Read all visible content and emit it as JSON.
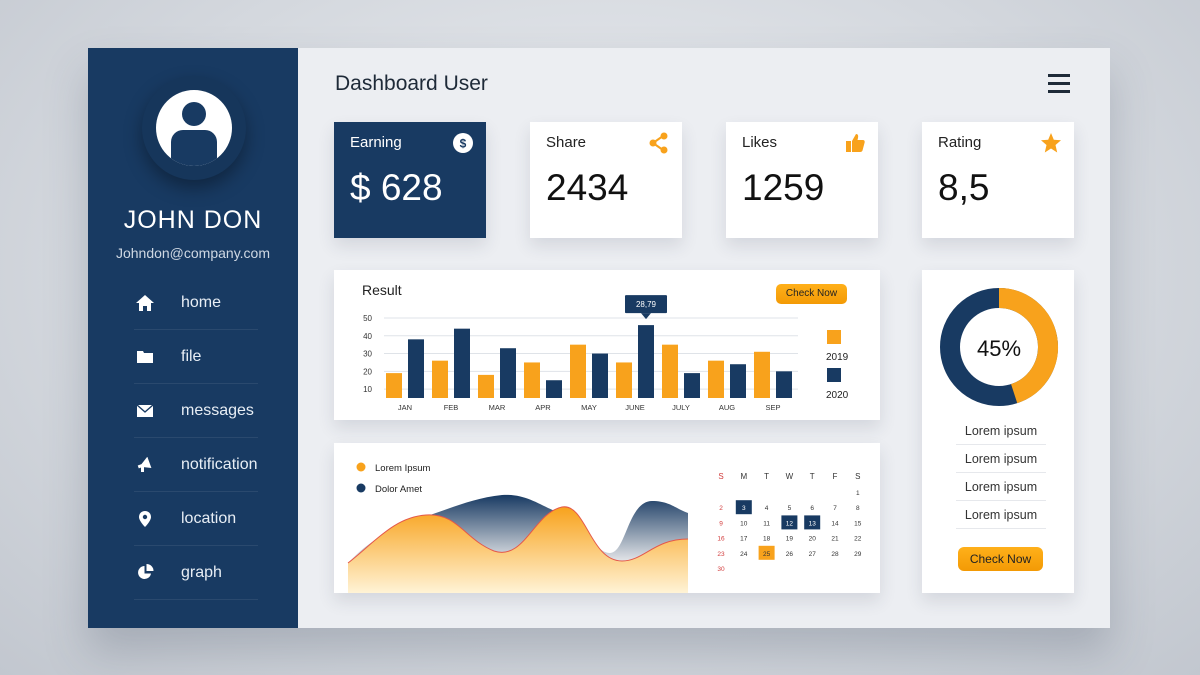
{
  "user": {
    "name": "JOHN DON",
    "email": "Johndon@company.com"
  },
  "sidebar": {
    "items": [
      {
        "label": "home",
        "icon": "home-icon"
      },
      {
        "label": "file",
        "icon": "folder-icon"
      },
      {
        "label": "messages",
        "icon": "envelope-icon"
      },
      {
        "label": "notification",
        "icon": "megaphone-icon"
      },
      {
        "label": "location",
        "icon": "location-pin-icon"
      },
      {
        "label": "graph",
        "icon": "pie-chart-icon"
      }
    ]
  },
  "header": {
    "title": "Dashboard User"
  },
  "stats": [
    {
      "label": "Earning",
      "value": "$ 628",
      "icon": "dollar-icon"
    },
    {
      "label": "Share",
      "value": "2434",
      "icon": "share-icon"
    },
    {
      "label": "Likes",
      "value": "1259",
      "icon": "thumbs-up-icon"
    },
    {
      "label": "Rating",
      "value": "8,5",
      "icon": "star-icon"
    }
  ],
  "result": {
    "title": "Result",
    "check_label": "Check Now",
    "tooltip": "28,79"
  },
  "area": {
    "legend": [
      "Lorem Ipsum",
      "Dolor Amet"
    ]
  },
  "calendar": {
    "days": [
      "S",
      "M",
      "T",
      "W",
      "T",
      "F",
      "S"
    ],
    "weeks": [
      [
        "",
        "",
        "",
        "",
        "",
        "",
        "1"
      ],
      [
        "2",
        "3",
        "4",
        "5",
        "6",
        "7",
        "8"
      ],
      [
        "9",
        "10",
        "11",
        "12",
        "13",
        "14",
        "15"
      ],
      [
        "16",
        "17",
        "18",
        "19",
        "20",
        "21",
        "22"
      ],
      [
        "23",
        "24",
        "25",
        "26",
        "27",
        "28",
        "29"
      ],
      [
        "30",
        "",
        "",
        "",
        "",
        "",
        ""
      ]
    ],
    "highlight_dark": [
      "3",
      "12",
      "13"
    ],
    "highlight_orange": [
      "25"
    ]
  },
  "donut": {
    "value": 45,
    "label": "45%",
    "items": [
      "Lorem ipsum",
      "Lorem ipsum",
      "Lorem ipsum",
      "Lorem ipsum"
    ],
    "check_label": "Check Now"
  },
  "colors": {
    "navy": "#183a62",
    "orange": "#f8a21c"
  },
  "chart_data": {
    "type": "bar",
    "categories": [
      "JAN",
      "FEB",
      "MAR",
      "APR",
      "MAY",
      "JUNE",
      "JULY",
      "AUG",
      "SEP"
    ],
    "series": [
      {
        "name": "2019",
        "values": [
          19,
          26,
          18,
          25,
          35,
          25,
          35,
          26,
          31
        ]
      },
      {
        "name": "2020",
        "values": [
          38,
          44,
          33,
          15,
          30,
          46,
          19,
          24,
          20
        ]
      }
    ],
    "yticks": [
      10,
      20,
      30,
      40,
      50
    ],
    "ylim": [
      5,
      50
    ],
    "legend_position": "right"
  }
}
